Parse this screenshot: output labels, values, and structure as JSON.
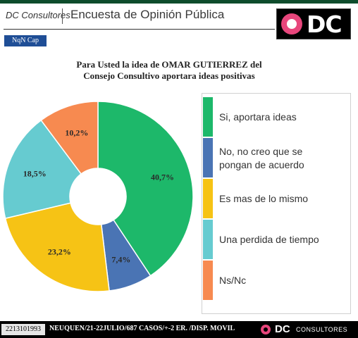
{
  "header": {
    "brand": "DC Consultores",
    "title": "Encuesta de Opinión Pública",
    "logo_text": "DC"
  },
  "tag": "NqN Cap",
  "chart_data": {
    "type": "pie",
    "title": "Para Usted la idea de OMAR GUTIERREZ del Consejo Consultivo aportara ideas positivas",
    "title_lines": [
      "Para Usted la idea de OMAR GUTIERREZ del",
      "Consejo Consultivo aportara ideas positivas"
    ],
    "donut": true,
    "slices": [
      {
        "label": "Si, aportara  ideas",
        "value": 40.7,
        "value_label": "40,7%",
        "color": "#1db86a"
      },
      {
        "label": "No, no creo que se pongan de acuerdo",
        "value": 7.4,
        "value_label": "7,4%",
        "color": "#4a74b4"
      },
      {
        "label": "Es mas de lo mismo",
        "value": 23.2,
        "value_label": "23,2%",
        "color": "#f6c315"
      },
      {
        "label": "Una perdida de tiempo",
        "value": 18.5,
        "value_label": "18,5%",
        "color": "#66cbd0"
      },
      {
        "label": "Ns/Nc",
        "value": 10.2,
        "value_label": "10,2%",
        "color": "#f78a50"
      }
    ]
  },
  "legend": {
    "items": [
      {
        "lines": [
          "Si, aportara  ideas"
        ],
        "color": "#1db86a"
      },
      {
        "lines": [
          "No, no creo que se",
          "pongan de acuerdo"
        ],
        "color": "#4a74b4"
      },
      {
        "lines": [
          "Es mas de lo mismo"
        ],
        "color": "#f6c315"
      },
      {
        "lines": [
          "Una perdida de tiempo"
        ],
        "color": "#66cbd0"
      },
      {
        "lines": [
          "Ns/Nc"
        ],
        "color": "#f78a50"
      }
    ]
  },
  "footer": {
    "phone": "2213101993",
    "info": "NEUQUEN/21-22JULIO/687 CASOS/+-2 ER. /DISP. MOVIL",
    "logo_dc": "DC",
    "logo_consultores": "CONSULTORES"
  }
}
